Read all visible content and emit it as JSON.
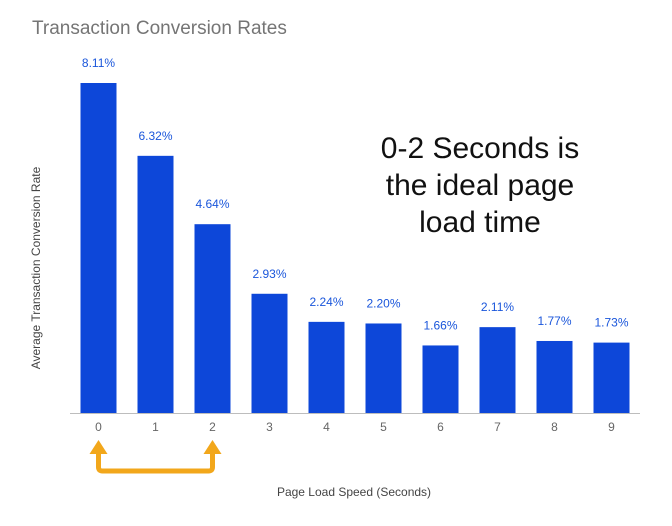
{
  "chart_data": {
    "type": "bar",
    "title": "Transaction Conversion Rates",
    "xlabel": "Page Load Speed (Seconds)",
    "ylabel": "Average Transaction Conversion Rate",
    "categories": [
      "0",
      "1",
      "2",
      "3",
      "4",
      "5",
      "6",
      "7",
      "8",
      "9"
    ],
    "values": [
      8.11,
      6.32,
      4.64,
      2.93,
      2.24,
      2.2,
      1.66,
      2.11,
      1.77,
      1.73
    ],
    "data_labels": [
      "8.11%",
      "6.32%",
      "4.64%",
      "2.93%",
      "2.24%",
      "2.20%",
      "1.66%",
      "2.11%",
      "1.77%",
      "1.73%"
    ],
    "ylim": [
      0,
      8.11
    ],
    "grid": false,
    "bar_color": "#0d47d9",
    "annotation": {
      "lines": [
        "0-2 Seconds is",
        "the ideal page",
        "load time"
      ],
      "bracket_from": "0",
      "bracket_to": "2",
      "bracket_color": "#f2a71b"
    }
  }
}
